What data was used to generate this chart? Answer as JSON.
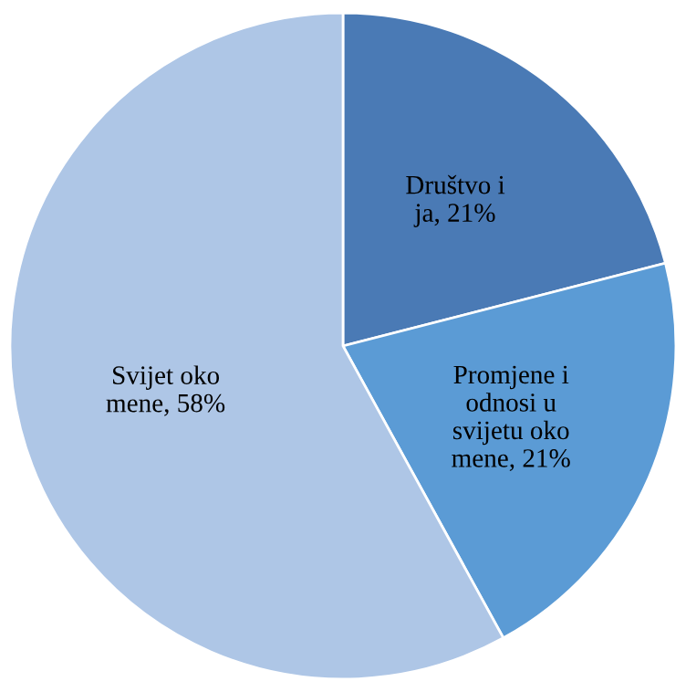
{
  "chart_data": {
    "type": "pie",
    "categories": [
      "Društvo i ja",
      "Promjene i odnosi u svijetu oko mene",
      "Svijet oko mene"
    ],
    "values": [
      21,
      21,
      58
    ],
    "colors": [
      "#4a7ab5",
      "#5b9bd5",
      "#aec6e6"
    ],
    "value_labels": [
      "21%",
      "21%",
      "58%"
    ],
    "legend": false
  }
}
